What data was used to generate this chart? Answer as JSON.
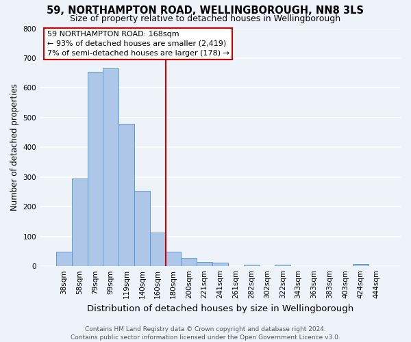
{
  "title1": "59, NORTHAMPTON ROAD, WELLINGBOROUGH, NN8 3LS",
  "title2": "Size of property relative to detached houses in Wellingborough",
  "xlabel": "Distribution of detached houses by size in Wellingborough",
  "ylabel": "Number of detached properties",
  "bin_labels": [
    "38sqm",
    "58sqm",
    "79sqm",
    "99sqm",
    "119sqm",
    "140sqm",
    "160sqm",
    "180sqm",
    "200sqm",
    "221sqm",
    "241sqm",
    "261sqm",
    "282sqm",
    "302sqm",
    "322sqm",
    "343sqm",
    "363sqm",
    "383sqm",
    "403sqm",
    "424sqm",
    "444sqm"
  ],
  "bar_heights": [
    48,
    295,
    653,
    665,
    478,
    253,
    113,
    48,
    28,
    15,
    13,
    0,
    4,
    0,
    5,
    0,
    0,
    0,
    0,
    7,
    0
  ],
  "bar_color": "#aec6e8",
  "bar_edge_color": "#5b9bd5",
  "background_color": "#eef2f9",
  "grid_color": "#ffffff",
  "vline_color": "#cc0000",
  "annotation_line1": "59 NORTHAMPTON ROAD: 168sqm",
  "annotation_line2": "← 93% of detached houses are smaller (2,419)",
  "annotation_line3": "7% of semi-detached houses are larger (178) →",
  "annotation_box_color": "#cc0000",
  "annotation_text_color": "#000000",
  "footnote1": "Contains HM Land Registry data © Crown copyright and database right 2024.",
  "footnote2": "Contains public sector information licensed under the Open Government Licence v3.0.",
  "ylim": [
    0,
    800
  ],
  "yticks": [
    0,
    100,
    200,
    300,
    400,
    500,
    600,
    700,
    800
  ],
  "title1_fontsize": 10.5,
  "title2_fontsize": 9,
  "xlabel_fontsize": 9.5,
  "ylabel_fontsize": 8.5,
  "tick_fontsize": 7.5,
  "annotation_fontsize": 8,
  "footnote_fontsize": 6.5
}
